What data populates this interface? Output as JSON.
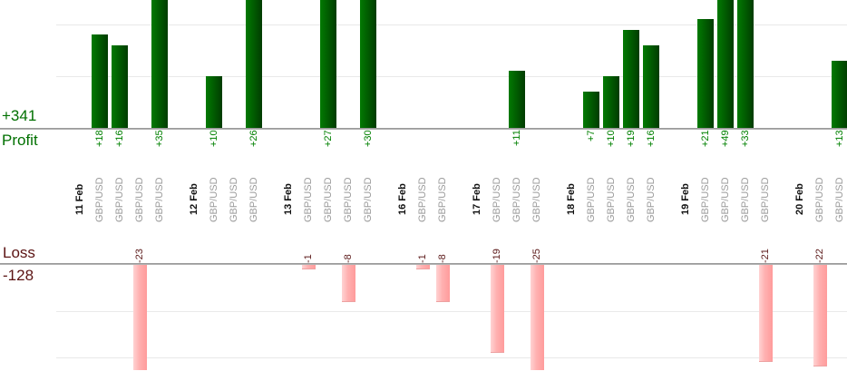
{
  "chart_data": {
    "type": "bar",
    "orientation": "vertical",
    "grid": true,
    "gridline_interval": 10,
    "profit": {
      "total_label": "+341",
      "axis_label": "Profit",
      "visible_value_range": [
        0,
        25
      ]
    },
    "loss": {
      "total_label": "-128",
      "axis_label": "Loss",
      "visible_value_range": [
        0,
        -23
      ]
    },
    "groups": [
      {
        "date": "11 Feb",
        "trades": [
          {
            "symbol": "GBP/USD",
            "value": 18,
            "label": "+18"
          },
          {
            "symbol": "GBP/USD",
            "value": 16,
            "label": "+16"
          },
          {
            "symbol": "GBP/USD",
            "value": -23,
            "label": "-23"
          },
          {
            "symbol": "GBP/USD",
            "value": 35,
            "label": "+35"
          }
        ]
      },
      {
        "date": "12 Feb",
        "trades": [
          {
            "symbol": "GBP/USD",
            "value": 10,
            "label": "+10"
          },
          {
            "symbol": "GBP/USD",
            "value": 0,
            "label": ""
          },
          {
            "symbol": "GBP/USD",
            "value": 26,
            "label": "+26"
          }
        ]
      },
      {
        "date": "13 Feb",
        "trades": [
          {
            "symbol": "GBP/USD",
            "value": -1,
            "label": "-1"
          },
          {
            "symbol": "GBP/USD",
            "value": 27,
            "label": "+27"
          },
          {
            "symbol": "GBP/USD",
            "value": -8,
            "label": "-8"
          },
          {
            "symbol": "GBP/USD",
            "value": 30,
            "label": "+30"
          }
        ]
      },
      {
        "date": "16 Feb",
        "trades": [
          {
            "symbol": "GBP/USD",
            "value": -1,
            "label": "-1"
          },
          {
            "symbol": "GBP/USD",
            "value": -8,
            "label": "-8"
          }
        ]
      },
      {
        "date": "17 Feb",
        "trades": [
          {
            "symbol": "GBP/USD",
            "value": -19,
            "label": "-19"
          },
          {
            "symbol": "GBP/USD",
            "value": 11,
            "label": "+11"
          },
          {
            "symbol": "GBP/USD",
            "value": -25,
            "label": "-25"
          }
        ]
      },
      {
        "date": "18 Feb",
        "trades": [
          {
            "symbol": "GBP/USD",
            "value": 7,
            "label": "+7"
          },
          {
            "symbol": "GBP/USD",
            "value": 10,
            "label": "+10"
          },
          {
            "symbol": "GBP/USD",
            "value": 19,
            "label": "+19"
          },
          {
            "symbol": "GBP/USD",
            "value": 16,
            "label": "+16"
          }
        ]
      },
      {
        "date": "19 Feb",
        "trades": [
          {
            "symbol": "GBP/USD",
            "value": 21,
            "label": "+21"
          },
          {
            "symbol": "GBP/USD",
            "value": 49,
            "label": "+49"
          },
          {
            "symbol": "GBP/USD",
            "value": 33,
            "label": "+33"
          },
          {
            "symbol": "GBP/USD",
            "value": -21,
            "label": "-21"
          }
        ]
      },
      {
        "date": "20 Feb",
        "trades": [
          {
            "symbol": "GBP/USD",
            "value": -22,
            "label": "-22"
          },
          {
            "symbol": "GBP/USD",
            "value": 13,
            "label": "+13"
          }
        ]
      }
    ],
    "colors": {
      "profit_bar": "#026002",
      "loss_bar": "#ffaaaa",
      "profit_text": "#008000",
      "loss_text": "#5c1a1a",
      "date_text": "#111111",
      "symbol_text": "#9b9b9b",
      "axis_line": "#9a9a9a",
      "gridline": "#e9e9e9"
    }
  }
}
